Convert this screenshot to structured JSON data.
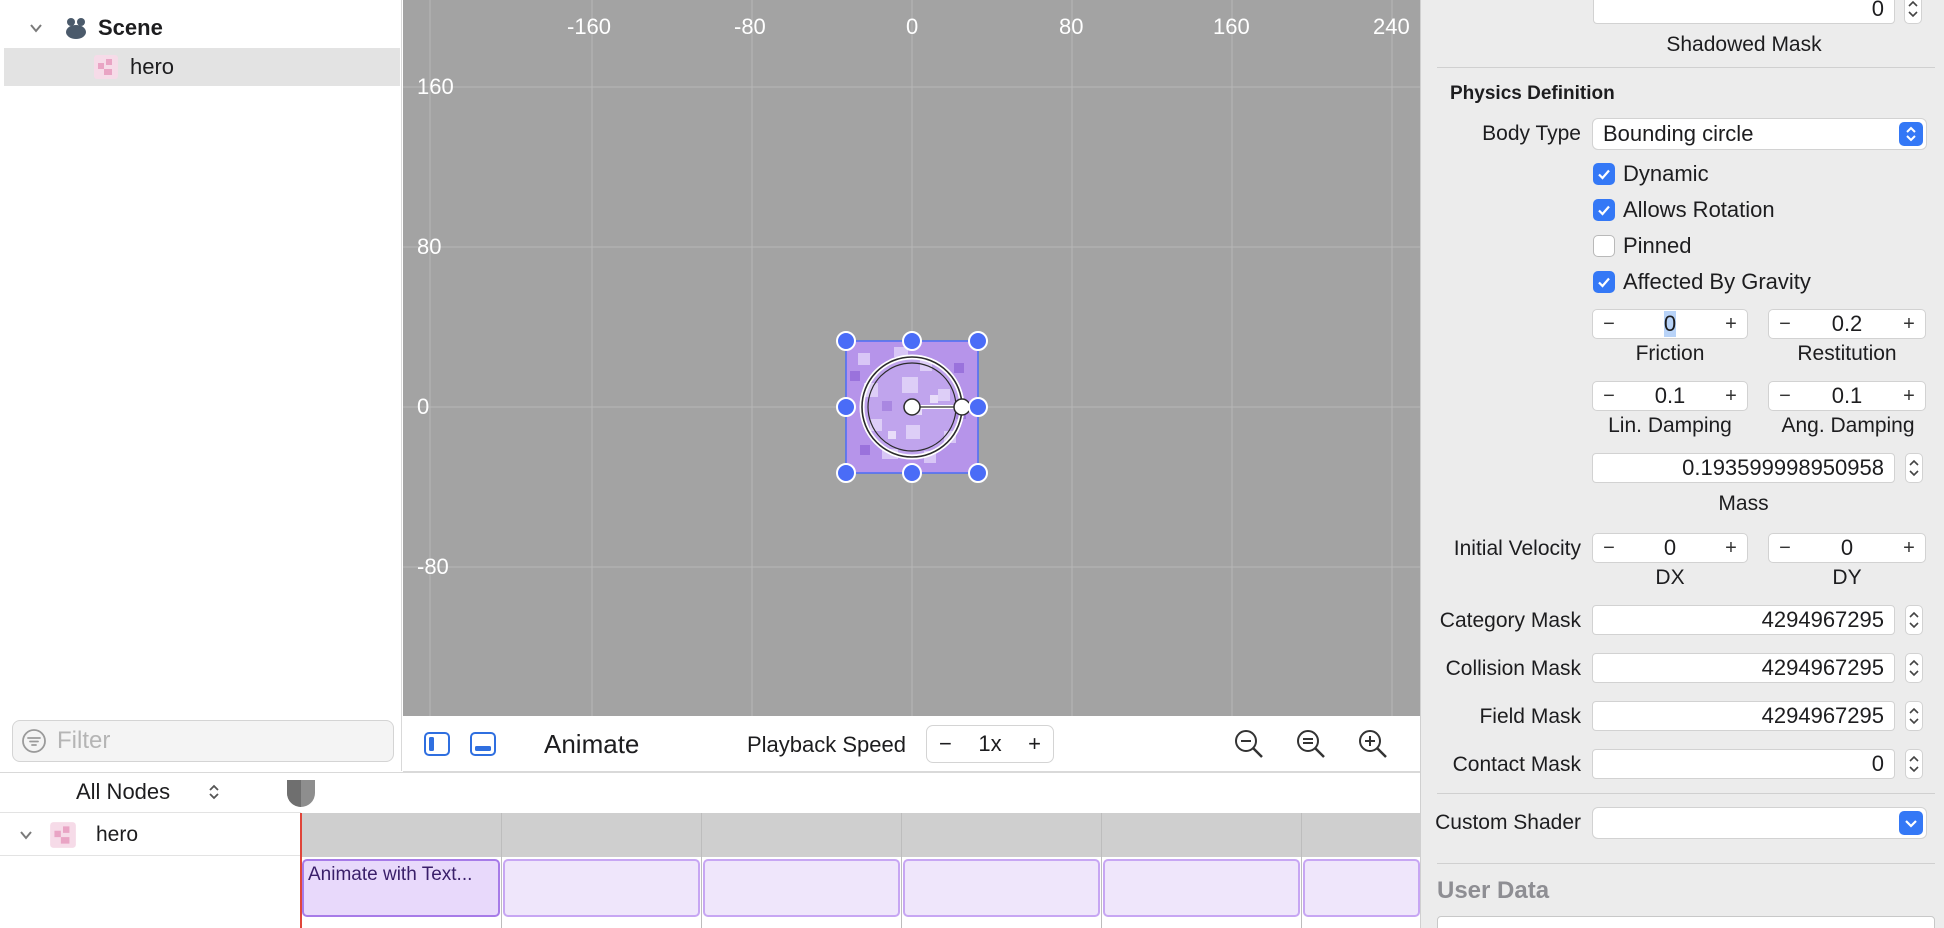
{
  "outline": {
    "items": [
      {
        "label": "Scene",
        "icon": "scene-icon",
        "expanded": true
      },
      {
        "label": "hero",
        "icon": "sprite-icon",
        "selected": true
      }
    ],
    "filter_placeholder": "Filter"
  },
  "canvas": {
    "x_ticks": [
      "-160",
      "-80",
      "0",
      "80",
      "160",
      "240"
    ],
    "y_ticks": [
      "160",
      "80",
      "0",
      "-80"
    ]
  },
  "canvas_toolbar": {
    "animate_label": "Animate",
    "playback_label": "Playback Speed",
    "speed_minus": "−",
    "speed_value": "1x",
    "speed_plus": "+"
  },
  "timeline": {
    "filter_label": "All Nodes",
    "node_label": "hero",
    "first_action_label": "Animate with Text..."
  },
  "inspector": {
    "shadowed_value": "0",
    "shadowed_label": "Shadowed Mask",
    "physics_title": "Physics Definition",
    "body_type_label": "Body Type",
    "body_type_value": "Bounding circle",
    "dynamic_label": "Dynamic",
    "dynamic_checked": true,
    "allows_rotation_label": "Allows Rotation",
    "allows_rotation_checked": true,
    "pinned_label": "Pinned",
    "pinned_checked": false,
    "gravity_label": "Affected By Gravity",
    "gravity_checked": true,
    "friction_value": "0",
    "friction_label": "Friction",
    "restitution_value": "0.2",
    "restitution_label": "Restitution",
    "lin_damping_value": "0.1",
    "lin_damping_label": "Lin. Damping",
    "ang_damping_value": "0.1",
    "ang_damping_label": "Ang. Damping",
    "mass_value": "0.193599998950958",
    "mass_label": "Mass",
    "initial_velocity_label": "Initial Velocity",
    "dx_value": "0",
    "dx_label": "DX",
    "dy_value": "0",
    "dy_label": "DY",
    "category_mask_label": "Category Mask",
    "category_mask_value": "4294967295",
    "collision_mask_label": "Collision Mask",
    "collision_mask_value": "4294967295",
    "field_mask_label": "Field Mask",
    "field_mask_value": "4294967295",
    "contact_mask_label": "Contact Mask",
    "contact_mask_value": "0",
    "custom_shader_label": "Custom Shader",
    "custom_shader_value": "",
    "user_data_title": "User Data",
    "minus": "−",
    "plus": "+"
  },
  "colors": {
    "accent": "#3478f6",
    "canvas_bg": "#a3a3a3",
    "selection_handle": "#4a6cf7",
    "timeline_block": "#efe6fb",
    "playhead": "#e0453a"
  }
}
